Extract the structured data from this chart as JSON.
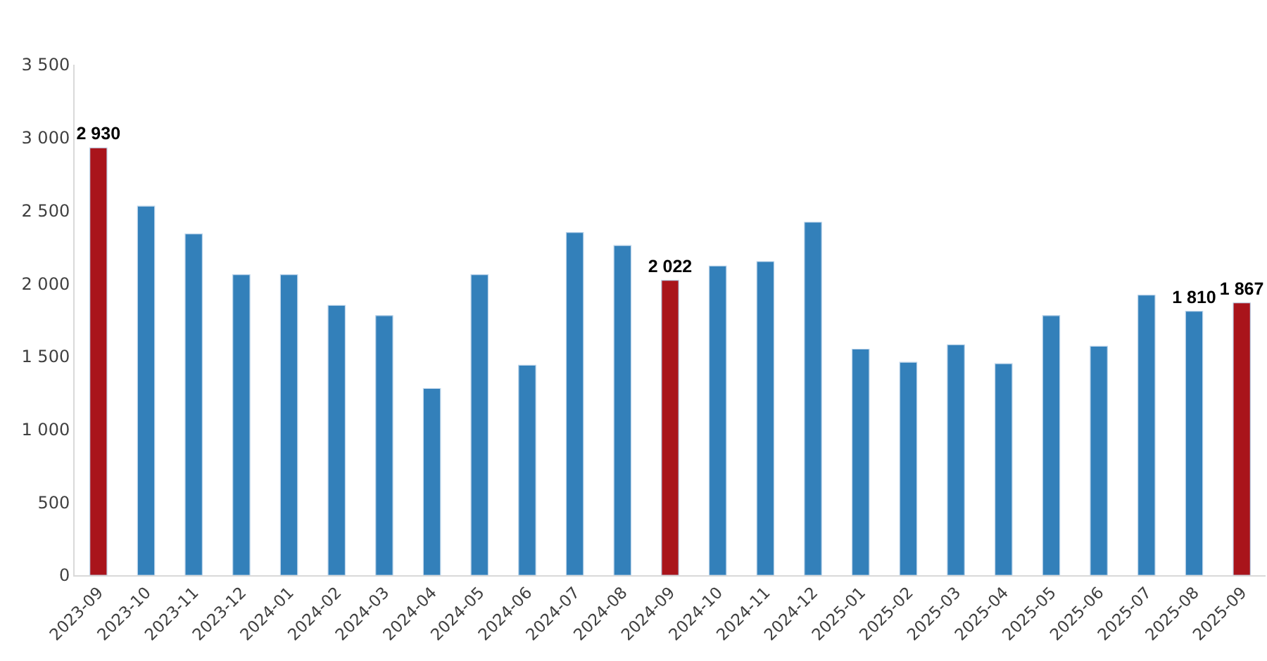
{
  "chart_data": {
    "type": "bar",
    "categories": [
      "2023-09",
      "2023-10",
      "2023-11",
      "2023-12",
      "2024-01",
      "2024-02",
      "2024-03",
      "2024-04",
      "2024-05",
      "2024-06",
      "2024-07",
      "2024-08",
      "2024-09",
      "2024-10",
      "2024-11",
      "2024-12",
      "2025-01",
      "2025-02",
      "2025-03",
      "2025-04",
      "2025-05",
      "2025-06",
      "2025-07",
      "2025-08",
      "2025-09"
    ],
    "values": [
      2930,
      2530,
      2340,
      2060,
      2060,
      1850,
      1780,
      1280,
      2060,
      1440,
      2350,
      2260,
      2022,
      2120,
      2150,
      2420,
      1550,
      1460,
      1580,
      1450,
      1780,
      1570,
      1920,
      1810,
      1867
    ],
    "colors": [
      "#a9141b",
      "#3380ba",
      "#3380ba",
      "#3380ba",
      "#3380ba",
      "#3380ba",
      "#3380ba",
      "#3380ba",
      "#3380ba",
      "#3380ba",
      "#3380ba",
      "#3380ba",
      "#a9141b",
      "#3380ba",
      "#3380ba",
      "#3380ba",
      "#3380ba",
      "#3380ba",
      "#3380ba",
      "#3380ba",
      "#3380ba",
      "#3380ba",
      "#3380ba",
      "#3380ba",
      "#a9141b"
    ],
    "value_labels": [
      "2 930",
      null,
      null,
      null,
      null,
      null,
      null,
      null,
      null,
      null,
      null,
      null,
      "2 022",
      null,
      null,
      null,
      null,
      null,
      null,
      null,
      null,
      null,
      null,
      "1 810",
      "1 867"
    ],
    "ylim": [
      0,
      3500
    ],
    "yticks": [
      0,
      500,
      {
        "value": 1000,
        "label": "1 000"
      },
      {
        "value": 1500,
        "label": "1 500"
      },
      {
        "value": 2000,
        "label": "2 000"
      },
      {
        "value": 2500,
        "label": "2 500"
      },
      {
        "value": 3000,
        "label": "3 000"
      },
      {
        "value": 3500,
        "label": "3 500"
      }
    ],
    "grid": false
  }
}
